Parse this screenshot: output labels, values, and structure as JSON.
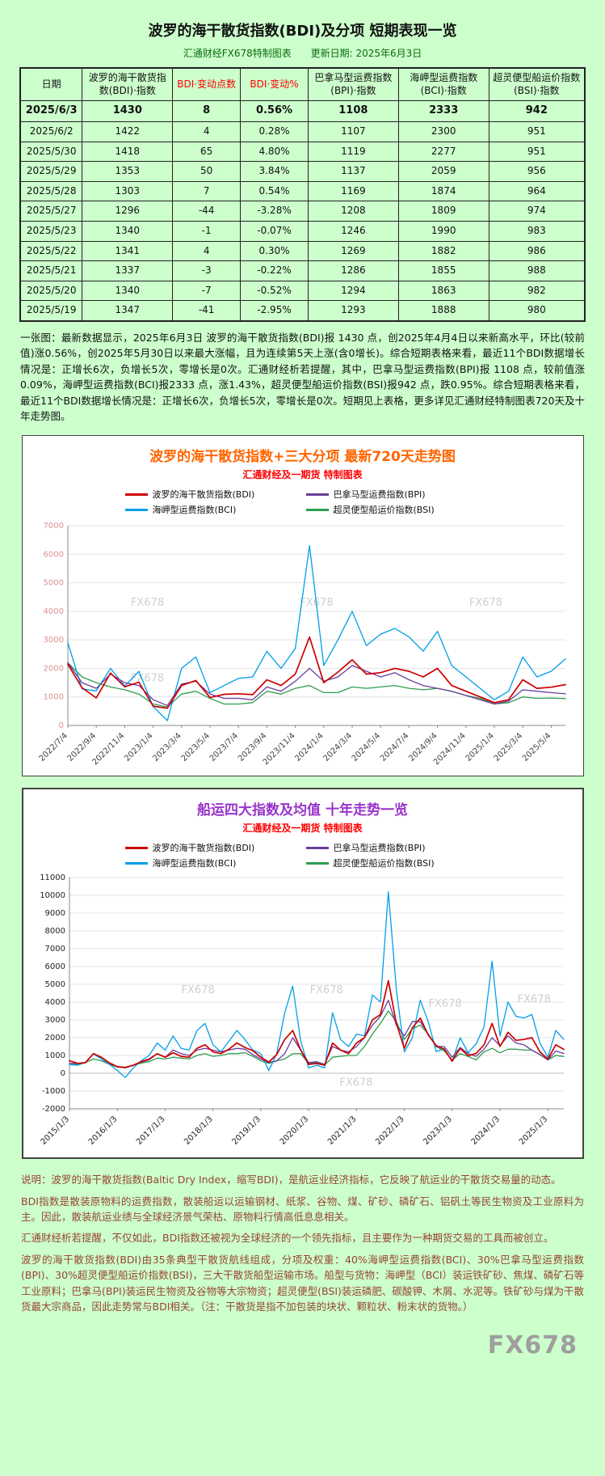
{
  "page": {
    "watermark": "FX678",
    "background_color": "#ccffcc"
  },
  "header": {
    "title": "波罗的海干散货指数(BDI)及分项 短期表现一览",
    "source": "汇通财经FX678特制图表",
    "update_date": "更新日期: 2025年6月3日"
  },
  "table": {
    "headers": [
      {
        "label": "日期",
        "accent": false
      },
      {
        "label": "波罗的海干散货指数(BDI)·指数",
        "accent": false
      },
      {
        "label": "BDI·变动点数",
        "accent": true
      },
      {
        "label": "BDI·变动%",
        "accent": true
      },
      {
        "label": "巴拿马型运费指数(BPI)·指数",
        "accent": false
      },
      {
        "label": "海岬型运费指数(BCI)·指数",
        "accent": false
      },
      {
        "label": "超灵便型船运价指数(BSI)·指数",
        "accent": false
      }
    ],
    "rows": [
      [
        "2025/6/3",
        "1430",
        "8",
        "0.56%",
        "1108",
        "2333",
        "942"
      ],
      [
        "2025/6/2",
        "1422",
        "4",
        "0.28%",
        "1107",
        "2300",
        "951"
      ],
      [
        "2025/5/30",
        "1418",
        "65",
        "4.80%",
        "1119",
        "2277",
        "951"
      ],
      [
        "2025/5/29",
        "1353",
        "50",
        "3.84%",
        "1137",
        "2059",
        "956"
      ],
      [
        "2025/5/28",
        "1303",
        "7",
        "0.54%",
        "1169",
        "1874",
        "964"
      ],
      [
        "2025/5/27",
        "1296",
        "-44",
        "-3.28%",
        "1208",
        "1809",
        "974"
      ],
      [
        "2025/5/23",
        "1340",
        "-1",
        "-0.07%",
        "1246",
        "1990",
        "983"
      ],
      [
        "2025/5/22",
        "1341",
        "4",
        "0.30%",
        "1269",
        "1882",
        "986"
      ],
      [
        "2025/5/21",
        "1337",
        "-3",
        "-0.22%",
        "1286",
        "1855",
        "988"
      ],
      [
        "2025/5/20",
        "1340",
        "-7",
        "-0.52%",
        "1294",
        "1863",
        "982"
      ],
      [
        "2025/5/19",
        "1347",
        "-41",
        "-2.95%",
        "1293",
        "1888",
        "980"
      ]
    ]
  },
  "summary": "一张图：最新数据显示，2025年6月3日 波罗的海干散货指数(BDI)报 1430 点，创2025年4月4日以来新高水平，环比(较前值)涨0.56%，创2025年5月30日以来最大涨幅，且为连续第5天上涨(含0增长)。综合短期表格来看，最近11个BDI数据增长情况是：正增长6次，负增长5次，零增长是0次。汇通财经析若提醒，其中，巴拿马型运费指数(BPI)报 1108 点，较前值涨0.09%，海岬型运费指数(BCI)报2333 点，涨1.43%，超灵便型船运价指数(BSI)报942 点，跌0.95%。综合短期表格来看，最近11个BDI数据增长情况是：正增长6次，负增长5次，零增长是0次。短期见上表格，更多详见汇通财经特制图表720天及十年走势图。",
  "chart_data": [
    {
      "type": "line",
      "title": "波罗的海干散货指数+三大分项  最新720天走势图",
      "subtitle": "汇通财经及一期货 特制图表",
      "title_color": "#ff6600",
      "subtitle_color": "#ff0000",
      "legend_position": "top",
      "grid": true,
      "ylim": [
        0,
        7000
      ],
      "yticks": [
        0,
        1000,
        2000,
        3000,
        4000,
        5000,
        6000,
        7000
      ],
      "x_labels": [
        "2022/7/4",
        "2022/9/4",
        "2022/11/4",
        "2023/1/4",
        "2023/3/4",
        "2023/5/4",
        "2023/7/4",
        "2023/9/4",
        "2023/11/4",
        "2024/1/4",
        "2024/3/4",
        "2024/5/4",
        "2024/7/4",
        "2024/9/4",
        "2024/11/4",
        "2025/1/4",
        "2025/3/4",
        "2025/5/4"
      ],
      "x_label_positions": [
        0,
        2,
        4,
        6,
        8,
        10,
        12,
        14,
        16,
        18,
        20,
        22,
        24,
        26,
        28,
        30,
        32,
        34
      ],
      "series": [
        {
          "name": "波罗的海干散货指数(BDI)",
          "color": "#cc0000",
          "values": [
            2145,
            1320,
            965,
            1837,
            1355,
            1515,
            676,
            605,
            1400,
            1576,
            980,
            1090,
            1110,
            1080,
            1600,
            1400,
            1800,
            3100,
            1500,
            1870,
            2300,
            1800,
            1850,
            2000,
            1900,
            1700,
            2000,
            1400,
            1200,
            1000,
            800,
            900,
            1600,
            1300,
            1340,
            1430
          ]
        },
        {
          "name": "巴拿马型运费指数(BPI)",
          "color": "#6a3d9a",
          "values": [
            2200,
            1500,
            1300,
            1800,
            1500,
            1400,
            900,
            700,
            1450,
            1550,
            1100,
            950,
            950,
            900,
            1350,
            1200,
            1550,
            2000,
            1550,
            1700,
            2100,
            1900,
            1700,
            1850,
            1600,
            1400,
            1300,
            1200,
            1050,
            900,
            750,
            850,
            1250,
            1200,
            1150,
            1108
          ]
        },
        {
          "name": "海岬型运费指数(BCI)",
          "color": "#009fe8",
          "values": [
            2900,
            1280,
            1211,
            2000,
            1380,
            1900,
            660,
            170,
            2000,
            2400,
            1150,
            1400,
            1650,
            1700,
            2600,
            2000,
            2700,
            6300,
            2100,
            3000,
            4000,
            2800,
            3200,
            3400,
            3100,
            2600,
            3300,
            2100,
            1700,
            1300,
            900,
            1200,
            2400,
            1700,
            1900,
            2333
          ]
        },
        {
          "name": "超灵便型船运价指数(BSI)",
          "color": "#2e9e4f",
          "values": [
            2200,
            1700,
            1500,
            1350,
            1250,
            1100,
            750,
            650,
            1100,
            1200,
            950,
            750,
            750,
            800,
            1200,
            1100,
            1300,
            1400,
            1150,
            1150,
            1350,
            1300,
            1350,
            1400,
            1300,
            1250,
            1300,
            1200,
            1050,
            950,
            750,
            800,
            1000,
            950,
            960,
            942
          ]
        }
      ]
    },
    {
      "type": "line",
      "title": "船运四大指数及均值 十年走势一览",
      "subtitle": "汇通财经及一期货 特制图表",
      "title_color": "#9933cc",
      "subtitle_color": "#ff0000",
      "legend_position": "top",
      "grid": true,
      "ylim": [
        -2000,
        11000
      ],
      "yticks": [
        -2000,
        -1000,
        0,
        1000,
        2000,
        3000,
        4000,
        5000,
        6000,
        7000,
        8000,
        9000,
        10000,
        11000
      ],
      "x_labels": [
        "2015/1/3",
        "2016/1/3",
        "2017/1/3",
        "2018/1/3",
        "2019/1/3",
        "2020/1/3",
        "2021/1/3",
        "2022/1/3",
        "2023/1/3",
        "2024/1/3",
        "2025/1/3"
      ],
      "x_label_positions": [
        0,
        6,
        12,
        18,
        24,
        30,
        36,
        42,
        48,
        54,
        60
      ],
      "series": [
        {
          "name": "波罗的海干散货指数(BDI)",
          "color": "#cc0000",
          "values": [
            700,
            560,
            590,
            1100,
            900,
            580,
            370,
            330,
            450,
            650,
            800,
            1100,
            900,
            1150,
            950,
            900,
            1400,
            1600,
            1200,
            1100,
            1350,
            1700,
            1450,
            1270,
            900,
            630,
            1050,
            1900,
            2400,
            1300,
            500,
            550,
            450,
            1700,
            1300,
            1100,
            1700,
            2000,
            3000,
            3300,
            5200,
            2800,
            1400,
            2550,
            3100,
            2145,
            1550,
            1355,
            676,
            1400,
            980,
            1110,
            1600,
            2800,
            1500,
            2300,
            1850,
            1900,
            2000,
            1200,
            800,
            1600,
            1340
          ]
        },
        {
          "name": "巴拿马型运费指数(BPI)",
          "color": "#6a3d9a",
          "values": [
            560,
            540,
            600,
            1100,
            900,
            560,
            370,
            300,
            450,
            620,
            750,
            1100,
            900,
            1300,
            1100,
            1000,
            1300,
            1400,
            1300,
            1200,
            1300,
            1400,
            1350,
            1050,
            800,
            600,
            700,
            1100,
            2000,
            1300,
            600,
            650,
            500,
            1500,
            1300,
            1200,
            1500,
            2000,
            2700,
            3200,
            4100,
            2700,
            2100,
            2900,
            2900,
            2200,
            1500,
            1500,
            900,
            1450,
            1100,
            950,
            1350,
            2000,
            1550,
            2100,
            1700,
            1600,
            1300,
            1050,
            750,
            1250,
            1108
          ]
        },
        {
          "name": "海岬型运费指数(BCI)",
          "color": "#009fe8",
          "values": [
            480,
            450,
            600,
            1100,
            800,
            500,
            161,
            -240,
            300,
            700,
            1000,
            1700,
            1300,
            2100,
            1400,
            1300,
            2400,
            2800,
            1600,
            1200,
            1800,
            2400,
            1900,
            1300,
            1100,
            150,
            1100,
            3400,
            4900,
            1800,
            300,
            450,
            300,
            3400,
            1900,
            1500,
            2200,
            2100,
            4400,
            4000,
            10200,
            4700,
            1200,
            2000,
            4100,
            2900,
            1211,
            1380,
            660,
            2000,
            1150,
            1650,
            2600,
            6300,
            2100,
            4000,
            3200,
            3100,
            3300,
            1700,
            900,
            2400,
            1900
          ]
        },
        {
          "name": "超灵便型船运价指数(BSI)",
          "color": "#2e9e4f",
          "values": [
            560,
            480,
            600,
            800,
            700,
            500,
            350,
            300,
            450,
            570,
            650,
            850,
            800,
            900,
            850,
            800,
            1000,
            1100,
            950,
            1000,
            1100,
            1100,
            1150,
            950,
            700,
            550,
            700,
            800,
            1100,
            1100,
            550,
            600,
            450,
            900,
            950,
            1000,
            1000,
            1500,
            2200,
            2800,
            3500,
            2900,
            1900,
            2500,
            2700,
            2200,
            1500,
            1250,
            750,
            1100,
            950,
            750,
            1200,
            1400,
            1150,
            1350,
            1350,
            1300,
            1300,
            1050,
            750,
            1000,
            942
          ]
        }
      ]
    }
  ],
  "footer": {
    "notes": [
      "说明：波罗的海干散货指数(Baltic Dry Index，缩写BDI)，是航运业经济指标，它反映了航运业的干散货交易量的动态。",
      "BDI指数是散装原物料的运费指数，散装船运以运输钢材、纸浆、谷物、煤、矿砂、磷矿石、铝矾土等民生物资及工业原料为主。因此，散装航运业绩与全球经济景气荣枯、原物料行情高低息息相关。",
      "汇通财经析若提醒，不仅如此，BDI指数还被视为全球经济的一个领先指标，且主要作为一种期货交易的工具而被创立。",
      "波罗的海干散货指数(BDI)由35条典型干散货航线组成，分项及权重：40%海岬型运费指数(BCI)、30%巴拿马型运费指数(BPI)、30%超灵便型船运价指数(BSI)，三大干散货船型运输市场。船型与货物：海岬型（BCI）装运铁矿砂、焦煤、磷矿石等工业原料；巴拿马(BPI)装运民生物资及谷物等大宗物资；超灵便型(BSI)装运磷肥、碳酸钾、木屑、水泥等。铁矿砂与煤为干散货最大宗商品，因此走势常与BDI相关。（注：干散货是指不加包装的块状、颗粒状、粉末状的货物。）"
    ],
    "logo": "FX678"
  }
}
